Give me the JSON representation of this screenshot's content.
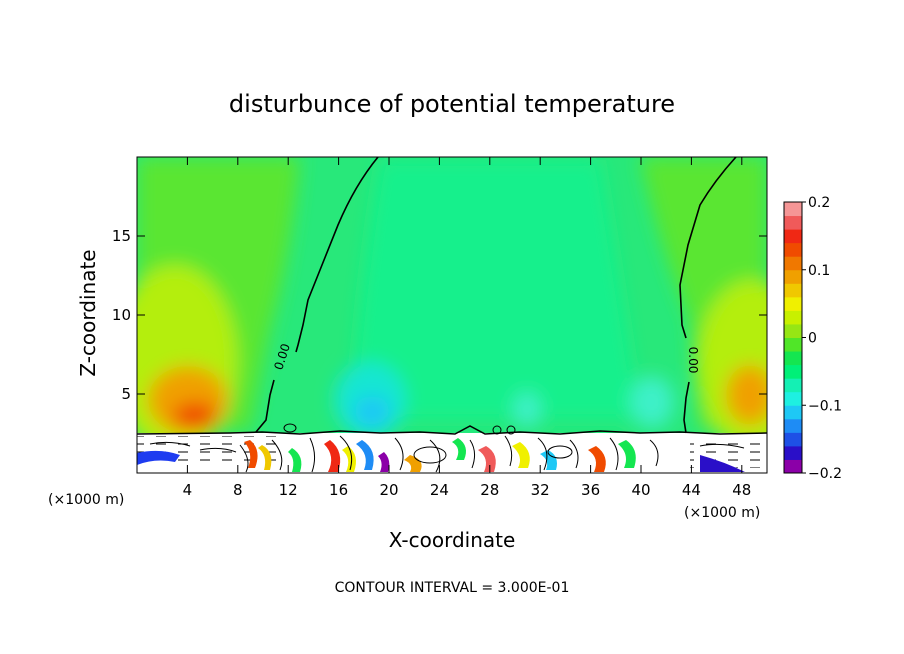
{
  "chart_data": {
    "type": "heatmap",
    "title": "disturbunce of potential temperature",
    "xlabel": "X-coordinate",
    "ylabel": "Z-coordinate",
    "x_unit_left": "(×1000 m)",
    "x_unit_right": "(×1000 m)",
    "xlim": [
      0,
      50
    ],
    "ylim": [
      0,
      20
    ],
    "x_ticks": [
      4,
      8,
      12,
      16,
      20,
      24,
      28,
      32,
      36,
      40,
      44,
      48
    ],
    "y_ticks": [
      5,
      10,
      15
    ],
    "x_tick_labels": [
      "4",
      "8",
      "12",
      "16",
      "20",
      "24",
      "28",
      "32",
      "36",
      "40",
      "44",
      "48"
    ],
    "y_tick_labels": [
      "5",
      "10",
      "15"
    ],
    "colorbar": {
      "range": [
        -0.2,
        0.2
      ],
      "tick_values": [
        0.2,
        0.1,
        0,
        -0.1,
        -0.2
      ],
      "tick_labels": [
        "0.2",
        "0.1",
        "0",
        "−0.1",
        "−0.2"
      ],
      "colors": [
        "#8b00a8",
        "#2a0fc8",
        "#1e50e6",
        "#1e8cf5",
        "#1ec8f5",
        "#1ef0e1",
        "#14f0b4",
        "#00f078",
        "#14e650",
        "#50e628",
        "#96e614",
        "#c8f000",
        "#f0f000",
        "#f0c800",
        "#f0a000",
        "#f07800",
        "#f04b00",
        "#f02814",
        "#f05a5a",
        "#f59696"
      ]
    },
    "contours": [
      {
        "label": "0.00",
        "x": 11.2,
        "z": 7.2
      },
      {
        "label": "0.00",
        "x": 43.3,
        "z": 7.2
      }
    ],
    "annotation": "CONTOUR INTERVAL = 3.000E-01"
  }
}
